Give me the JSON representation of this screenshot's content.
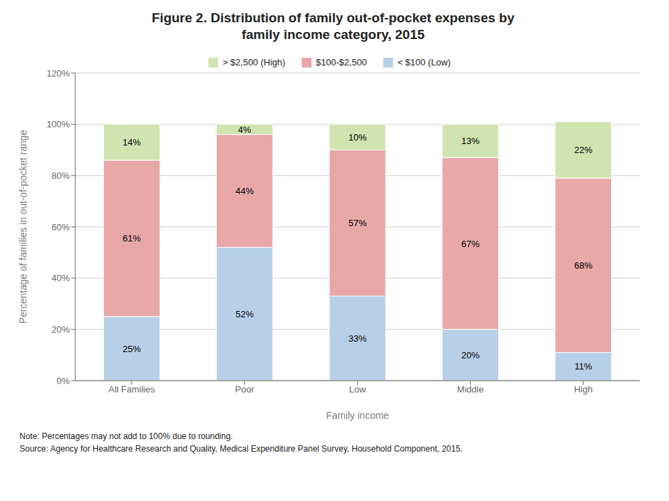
{
  "chart_data": {
    "type": "bar",
    "title": "Figure 2. Distribution of family out-of-pocket expenses by\nfamily income category, 2015",
    "stacked": true,
    "data_labels": true,
    "grid": true,
    "legend": "top",
    "categories": [
      "All Families",
      "Poor",
      "Low",
      "Middle",
      "High"
    ],
    "series": [
      {
        "name": "< $100 (Low)",
        "color": "#b8cfe8",
        "values": [
          25,
          52,
          33,
          20,
          11
        ],
        "value_labels": [
          "25%",
          "52%",
          "33%",
          "20%",
          "11%"
        ]
      },
      {
        "name": "$100-$2,500",
        "color": "#e8a8a8",
        "values": [
          61,
          44,
          57,
          67,
          68
        ],
        "value_labels": [
          "61%",
          "44%",
          "57%",
          "67%",
          "68%"
        ]
      },
      {
        "name": "> $2,500 (High)",
        "color": "#d0e4b0",
        "values": [
          14,
          4,
          10,
          13,
          22
        ],
        "value_labels": [
          "14%",
          "4%",
          "10%",
          "13%",
          "22%"
        ]
      }
    ],
    "xlabel": "Family income",
    "ylabel": "Percentage of families in out-of-pocket range",
    "ylim": [
      0,
      120
    ],
    "yticks": [
      {
        "value": 0,
        "label": "0%"
      },
      {
        "value": 20,
        "label": "20%"
      },
      {
        "value": 40,
        "label": "40%"
      },
      {
        "value": 60,
        "label": "60%"
      },
      {
        "value": 80,
        "label": "80%"
      },
      {
        "value": 100,
        "label": "100%"
      },
      {
        "value": 120,
        "label": "120%"
      }
    ],
    "annotations": [
      "Note: Percentages may not add to 100% due to rounding.",
      "Source: Agency for Healthcare Research and Quality, Medical Expenditure Panel Survey, Household Component, 2015."
    ]
  }
}
